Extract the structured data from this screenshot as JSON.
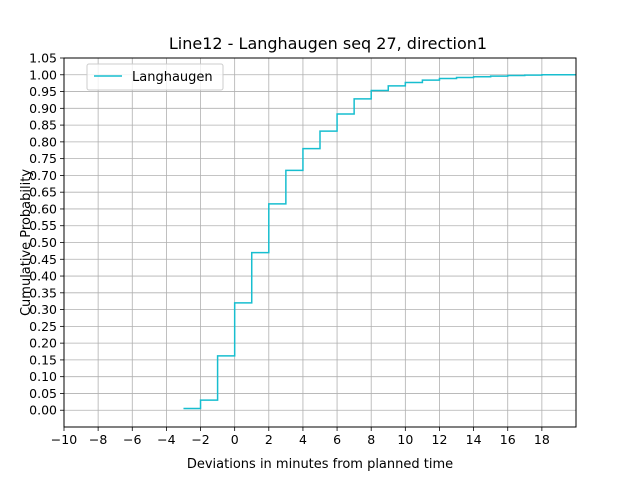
{
  "chart_data": {
    "type": "line",
    "title": "Line12 - Langhaugen seq 27, direction1",
    "xlabel": "Deviations in minutes from planned time",
    "ylabel": "Cumulative Probability",
    "xlim": [
      -10,
      20
    ],
    "ylim": [
      -0.05,
      1.05
    ],
    "x_ticks": [
      -10,
      -8,
      -6,
      -4,
      -2,
      0,
      2,
      4,
      6,
      8,
      10,
      12,
      14,
      16,
      18
    ],
    "y_ticks": [
      0.0,
      0.05,
      0.1,
      0.15,
      0.2,
      0.25,
      0.3,
      0.35,
      0.4,
      0.45,
      0.5,
      0.55,
      0.6,
      0.65,
      0.7,
      0.75,
      0.8,
      0.85,
      0.9,
      0.95,
      1.0,
      1.05
    ],
    "x_tick_labels": [
      "−10",
      "−8",
      "−6",
      "−4",
      "−2",
      "0",
      "2",
      "4",
      "6",
      "8",
      "10",
      "12",
      "14",
      "16",
      "18"
    ],
    "y_tick_labels": [
      "0.00",
      "0.05",
      "0.10",
      "0.15",
      "0.20",
      "0.25",
      "0.30",
      "0.35",
      "0.40",
      "0.45",
      "0.50",
      "0.55",
      "0.60",
      "0.65",
      "0.70",
      "0.75",
      "0.80",
      "0.85",
      "0.90",
      "0.95",
      "1.00",
      "1.05"
    ],
    "grid": true,
    "legend_position": "upper-left",
    "step": "post",
    "series": [
      {
        "name": "Langhaugen",
        "color": "#17becf",
        "x": [
          -3,
          -2,
          -1,
          0,
          1,
          2,
          3,
          4,
          5,
          6,
          7,
          8,
          9,
          10,
          11,
          12,
          13,
          14,
          15,
          16,
          17,
          18,
          20
        ],
        "y": [
          0.005,
          0.03,
          0.162,
          0.32,
          0.47,
          0.615,
          0.715,
          0.78,
          0.832,
          0.883,
          0.928,
          0.953,
          0.967,
          0.977,
          0.984,
          0.989,
          0.992,
          0.994,
          0.996,
          0.998,
          0.999,
          1.0,
          1.0
        ]
      }
    ]
  }
}
